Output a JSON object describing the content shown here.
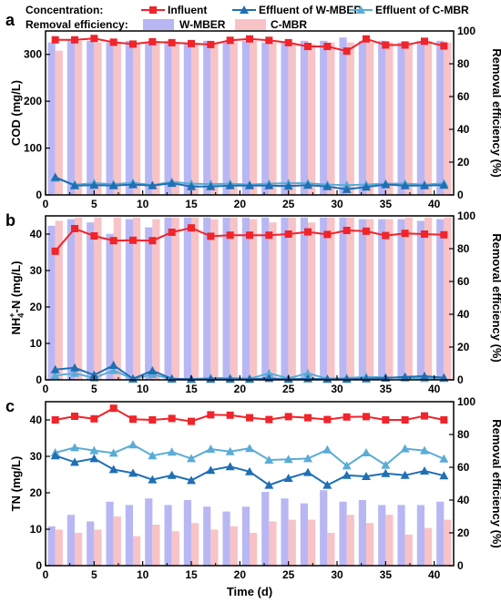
{
  "colors": {
    "influent": "#f0242a",
    "effluent_wmber": "#1f6fb5",
    "effluent_cmbr": "#5aacd6",
    "bar_wmber": "#b9b7f3",
    "bar_cmbr": "#f8c3c6"
  },
  "legend": {
    "concentration_title": "Concentration:",
    "removal_title": "Removal efficiency:",
    "influent": "Influent",
    "effluent_wmber": "Effluent of W-MBER",
    "effluent_cmbr": "Effluent of C-MBR",
    "bar_wmber": "W-MBER",
    "bar_cmbr": "C-MBR"
  },
  "chart_data": [
    {
      "panel": "a",
      "type": "bar+line",
      "xlabel": "",
      "ylabel": "COD (mg/L)",
      "y2label": "Removal efficiency (%)",
      "xlim": [
        0,
        42
      ],
      "ylim": [
        0,
        350
      ],
      "y2lim": [
        0,
        100
      ],
      "xticks": [
        0,
        5,
        10,
        15,
        20,
        25,
        30,
        35,
        40
      ],
      "yticks": [
        0,
        100,
        200,
        300
      ],
      "y2ticks": [
        0,
        20,
        40,
        60,
        80,
        100
      ],
      "x": [
        1,
        3,
        5,
        7,
        9,
        11,
        13,
        15,
        17,
        19,
        21,
        23,
        25,
        27,
        29,
        31,
        33,
        35,
        37,
        39,
        41
      ],
      "lines": [
        {
          "key": "influent",
          "marker": "square",
          "values": [
            331,
            331,
            334,
            326,
            322,
            327,
            325,
            323,
            321,
            330,
            333,
            330,
            325,
            317,
            317,
            307,
            333,
            320,
            320,
            328,
            318
          ]
        },
        {
          "key": "effluent_wmber",
          "marker": "triangle",
          "values": [
            38,
            20,
            21,
            20,
            22,
            20,
            25,
            18,
            18,
            20,
            20,
            20,
            19,
            21,
            18,
            12,
            17,
            22,
            20,
            20,
            21
          ]
        },
        {
          "key": "effluent_cmbr",
          "marker": "triangle",
          "values": [
            36,
            22,
            25,
            23,
            26,
            21,
            28,
            24,
            23,
            24,
            22,
            24,
            25,
            25,
            22,
            21,
            22,
            24,
            24,
            22,
            25
          ]
        }
      ],
      "bars": [
        {
          "key": "bar_wmber",
          "values": [
            93,
            95,
            94,
            93,
            94,
            93,
            94,
            93,
            94,
            93,
            94,
            93,
            93,
            94,
            94,
            96,
            94,
            94,
            93,
            94,
            94
          ]
        },
        {
          "key": "bar_cmbr",
          "values": [
            88,
            94,
            93,
            93,
            93,
            93,
            93,
            92,
            93,
            93,
            94,
            93,
            93,
            92,
            93,
            93,
            93,
            93,
            93,
            94,
            93
          ]
        }
      ]
    },
    {
      "panel": "b",
      "type": "bar+line",
      "xlabel": "",
      "ylabel": "NH4+-N (mg/L)",
      "y2label": "Removal efficiency (%)",
      "xlim": [
        0,
        42
      ],
      "ylim": [
        0,
        45
      ],
      "y2lim": [
        0,
        100
      ],
      "xticks": [
        0,
        5,
        10,
        15,
        20,
        25,
        30,
        35,
        40
      ],
      "yticks": [
        0,
        10,
        20,
        30,
        40
      ],
      "y2ticks": [
        0,
        20,
        40,
        60,
        80,
        100
      ],
      "x": [
        1,
        3,
        5,
        7,
        9,
        11,
        13,
        15,
        17,
        19,
        21,
        23,
        25,
        27,
        29,
        31,
        33,
        35,
        37,
        39,
        41
      ],
      "lines": [
        {
          "key": "influent",
          "marker": "square",
          "values": [
            35.3,
            41.5,
            39.5,
            38.2,
            38.3,
            38.2,
            40.5,
            41.7,
            39.4,
            39.7,
            39.7,
            39.7,
            40.0,
            40.6,
            39.9,
            41.0,
            40.8,
            39.6,
            40.2,
            40.0,
            39.8
          ]
        },
        {
          "key": "effluent_wmber",
          "marker": "triangle",
          "values": [
            2.8,
            3.3,
            1.3,
            4.0,
            0.3,
            2.5,
            0.3,
            0.2,
            0.2,
            0.2,
            0.2,
            0.4,
            0.2,
            0.3,
            0.2,
            0.2,
            0.3,
            0.5,
            0.8,
            1.0,
            0.6
          ]
        },
        {
          "key": "effluent_cmbr",
          "marker": "triangle",
          "values": [
            1.2,
            1.8,
            0.5,
            2.6,
            0.2,
            1.5,
            0.2,
            0.2,
            0.5,
            0.5,
            0.3,
            1.8,
            0.4,
            1.8,
            0.3,
            0.5,
            0.8,
            0.7,
            0.5,
            0.4,
            0.4
          ]
        }
      ],
      "bars": [
        {
          "key": "bar_wmber",
          "values": [
            94,
            98,
            96,
            89,
            98,
            93,
            99,
            99,
            99,
            99,
            99,
            99,
            99,
            99,
            99,
            99,
            98,
            98,
            98,
            97,
            98
          ]
        },
        {
          "key": "bar_cmbr",
          "values": [
            97,
            99,
            99,
            99,
            99,
            98,
            99,
            99,
            98,
            99,
            98,
            96,
            99,
            96,
            99,
            99,
            98,
            98,
            99,
            99,
            99
          ]
        }
      ]
    },
    {
      "panel": "c",
      "type": "bar+line",
      "xlabel": "Time (d)",
      "ylabel": "TN (mg/L)",
      "y2label": "Removal efficiency (%)",
      "xlim": [
        0,
        42
      ],
      "ylim": [
        0,
        45
      ],
      "y2lim": [
        0,
        100
      ],
      "xticks": [
        0,
        5,
        10,
        15,
        20,
        25,
        30,
        35,
        40
      ],
      "yticks": [
        0,
        10,
        20,
        30,
        40
      ],
      "y2ticks": [
        0,
        20,
        40,
        60,
        80,
        100
      ],
      "x": [
        1,
        3,
        5,
        7,
        9,
        11,
        13,
        15,
        17,
        19,
        21,
        23,
        25,
        27,
        29,
        31,
        33,
        35,
        37,
        39,
        41
      ],
      "lines": [
        {
          "key": "influent",
          "marker": "square",
          "values": [
            40.0,
            41.0,
            40.3,
            43.2,
            40.2,
            40.0,
            40.4,
            39.6,
            41.4,
            41.3,
            40.6,
            40.1,
            40.9,
            40.6,
            40.1,
            40.8,
            40.9,
            40.0,
            40.0,
            41.1,
            40.0
          ]
        },
        {
          "key": "effluent_wmber",
          "marker": "triangle",
          "values": [
            30.2,
            28.4,
            29.4,
            26.4,
            25.4,
            23.6,
            24.8,
            23.4,
            26.2,
            27.2,
            25.8,
            22.1,
            24.0,
            25.6,
            22.1,
            24.8,
            24.5,
            25.3,
            24.8,
            26.0,
            24.7
          ]
        },
        {
          "key": "effluent_cmbr",
          "marker": "triangle",
          "values": [
            31.0,
            32.4,
            31.6,
            30.9,
            33.2,
            30.2,
            31.2,
            29.4,
            32.0,
            31.3,
            32.2,
            29.0,
            29.2,
            29.4,
            31.8,
            27.4,
            31.0,
            27.6,
            32.1,
            31.6,
            29.3
          ]
        }
      ],
      "bars": [
        {
          "key": "bar_wmber",
          "values": [
            24,
            31,
            27,
            39,
            37,
            41,
            37,
            40,
            36,
            33,
            36,
            45,
            41,
            38,
            46,
            39,
            40,
            37,
            37,
            37,
            39
          ]
        },
        {
          "key": "bar_cmbr",
          "values": [
            22,
            20,
            22,
            30,
            18,
            25,
            21,
            26,
            22,
            24,
            20,
            27,
            28,
            28,
            20,
            31,
            26,
            31,
            19,
            23,
            28
          ]
        }
      ]
    }
  ]
}
